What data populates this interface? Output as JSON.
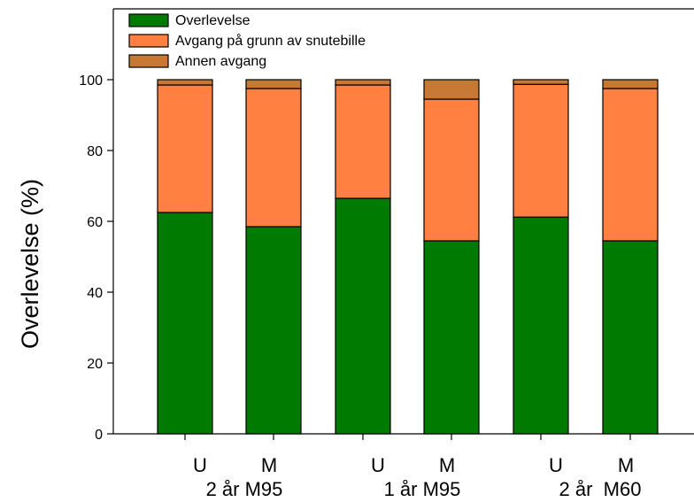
{
  "chart_data": {
    "type": "bar",
    "stacked": true,
    "categories": [
      "U",
      "M",
      "U",
      "M",
      "U",
      "M"
    ],
    "group_labels": [
      "2 år M95",
      "1 år M95",
      "2 år  M60"
    ],
    "ylabel": "Overlevelse (%)",
    "xlabel": "",
    "ylim": [
      0,
      120
    ],
    "yticks": [
      0,
      20,
      40,
      60,
      80,
      100
    ],
    "grid": false,
    "legend_position": "top-left",
    "series": [
      {
        "name": "Overlevelse",
        "color": "#007a00",
        "values": [
          62.5,
          58.5,
          66.5,
          54.5,
          61.2,
          54.5
        ]
      },
      {
        "name": "Avgang på grunn av snutebille",
        "color": "#ff8040",
        "values": [
          36.0,
          39.0,
          32.0,
          40.0,
          37.5,
          43.0
        ]
      },
      {
        "name": "Annen avgang",
        "color": "#c87832",
        "values": [
          1.5,
          2.5,
          1.5,
          5.5,
          1.3,
          2.5
        ]
      }
    ]
  }
}
